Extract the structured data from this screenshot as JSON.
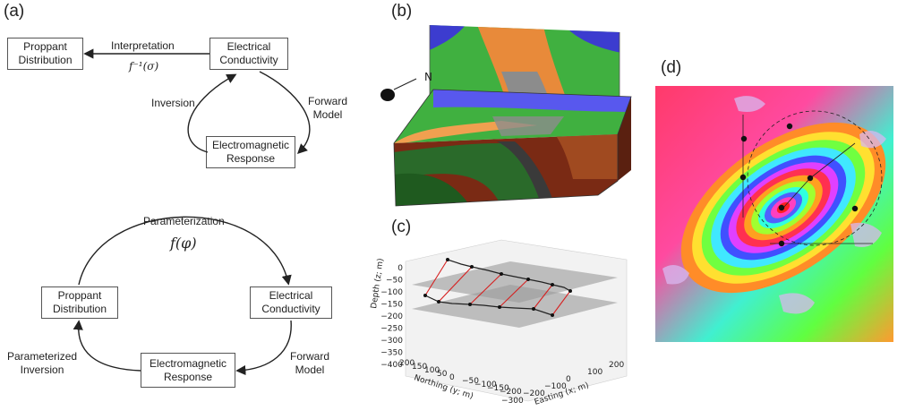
{
  "panels": {
    "a": "(a)",
    "b": "(b)",
    "c": "(c)",
    "d": "(d)"
  },
  "top_cycle": {
    "proppant": "Proppant\nDistribution",
    "conductivity": "Electrical\nConductivity",
    "em_response": "Electromagnetic\nResponse",
    "interpretation": "Interpretation",
    "finv": "f⁻¹(σ)",
    "inversion": "Inversion",
    "forward": "Forward\nModel"
  },
  "bottom_cycle": {
    "parameterization": "Parameterization",
    "fphi": "f(φ)",
    "proppant": "Proppant\nDistribution",
    "conductivity": "Electrical\nConductivity",
    "em_response": "Electromagnetic\nResponse",
    "param_inversion": "Parameterized\nInversion",
    "forward": "Forward\nModel"
  },
  "panel_b": {
    "north": "N"
  },
  "chart_data": {
    "type": "scatter",
    "zlabel": "Depth (z; m)",
    "xlabel": "Easting (x; m)",
    "ylabel": "Northing (y; m)",
    "z_ticks": [
      "0",
      "−50",
      "−100",
      "−150",
      "−200",
      "−250",
      "−300",
      "−350",
      "−400"
    ],
    "x_ticks": [
      "−300",
      "−200",
      "−100",
      "0",
      "100",
      "200"
    ],
    "y_ticks": [
      "200",
      "150",
      "100",
      "50",
      "0",
      "−50",
      "−100",
      "−150",
      "−200"
    ]
  },
  "colors": {
    "line": "#222222",
    "connector": "#d62020",
    "plane": "#9a9a9a"
  }
}
